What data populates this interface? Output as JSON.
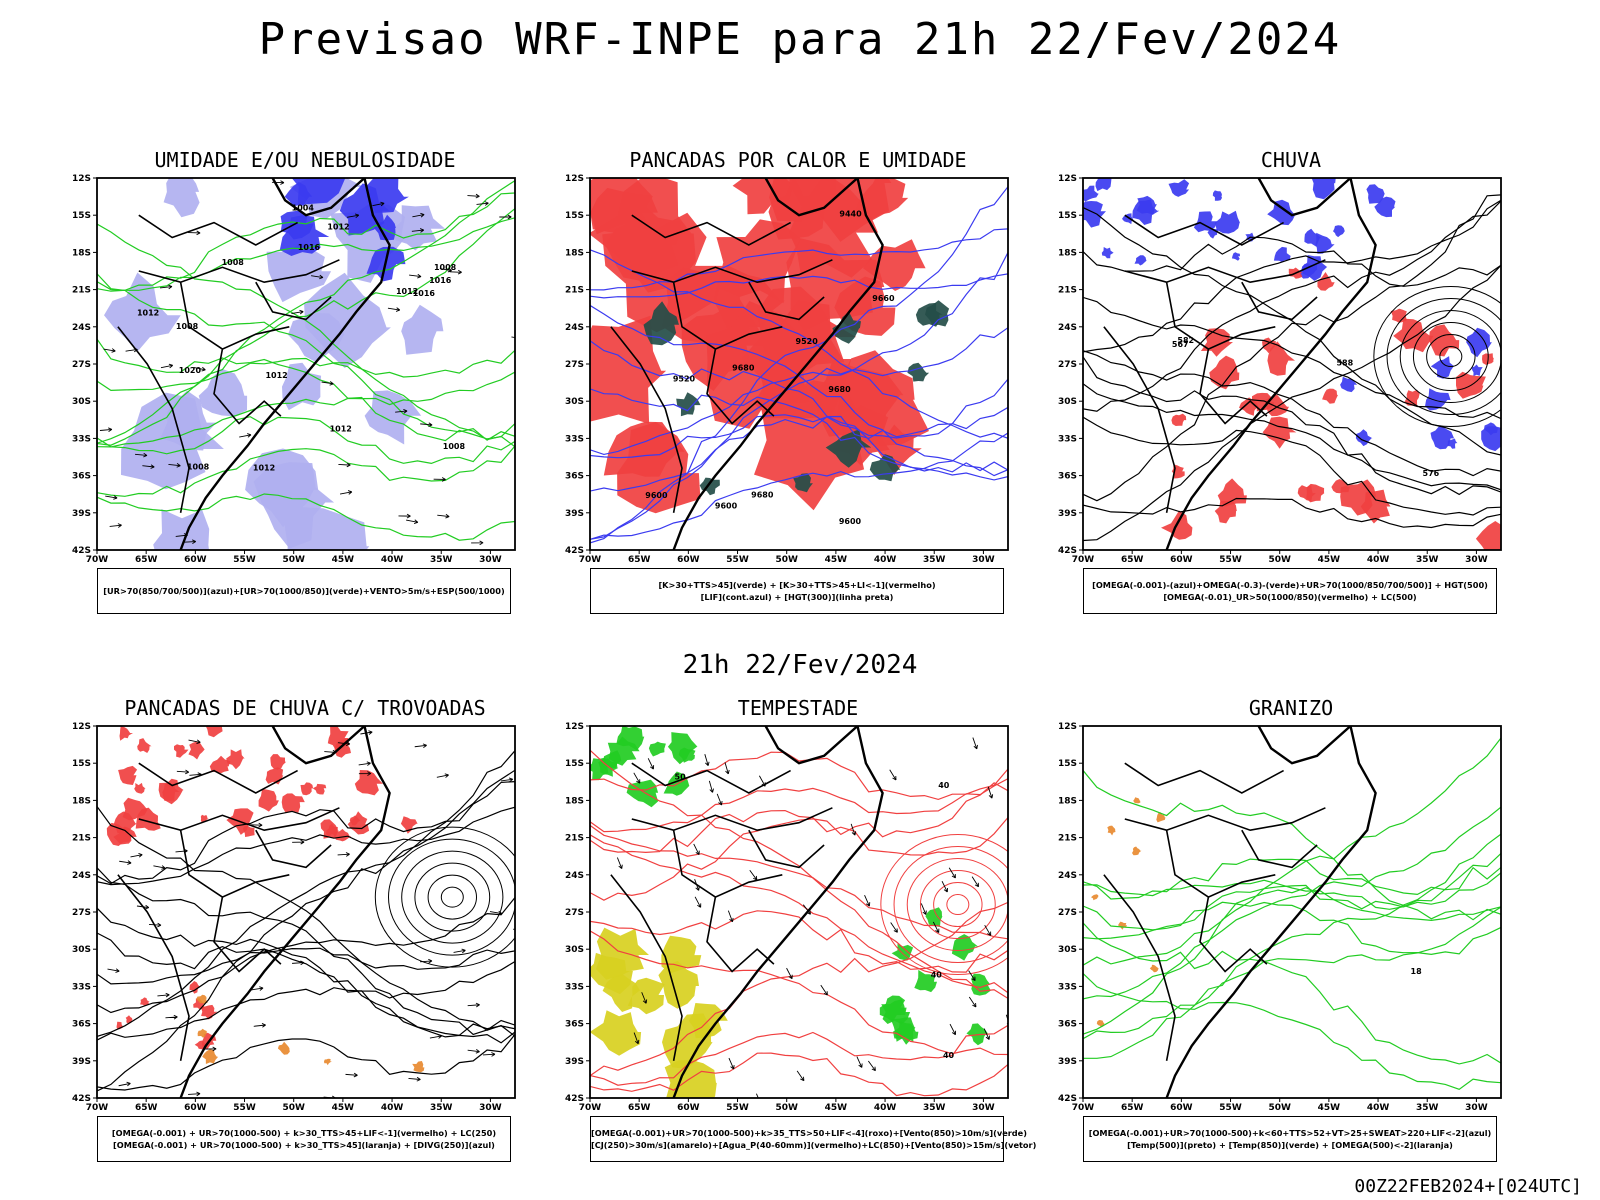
{
  "title": "Previsao WRF-INPE  para 21h 22/Fev/2024",
  "mid_date": "21h 22/Fev/2024",
  "footer": "00Z22FEB2024+[024UTC]",
  "axes": {
    "lat_ticks": [
      "12S",
      "15S",
      "18S",
      "21S",
      "24S",
      "27S",
      "30S",
      "33S",
      "36S",
      "39S",
      "42S"
    ],
    "lon_ticks": [
      "70W",
      "65W",
      "60W",
      "55W",
      "50W",
      "45W",
      "40W",
      "35W",
      "30W"
    ]
  },
  "panels": [
    {
      "title": "UMIDADE E/OU NEBULOSIDADE",
      "legend": [
        "[UR>70(850/700/500)](azul)+[UR>70(1000/850)](verde)+VENTO>5m/s+ESP(500/1000)"
      ],
      "labels": [
        "1008",
        "1012",
        "1008",
        "1008",
        "1012",
        "1012",
        "1016",
        "1016",
        "1004",
        "1008",
        "1012",
        "1012",
        "1008",
        "1016",
        "1012",
        "1020"
      ]
    },
    {
      "title": "PANCADAS POR CALOR E UMIDADE",
      "legend": [
        "[K>30+TTS>45](verde) + [K>30+TTS>45+LI<-1](vermelho)",
        "[LIF](cont.azul) + [HGT(300)](linha preta)"
      ],
      "labels": [
        "9680",
        "9680",
        "9600",
        "9660",
        "9680",
        "9600",
        "9600",
        "9520",
        "9520",
        "9440"
      ]
    },
    {
      "title": "CHUVA",
      "legend": [
        "[OMEGA(-0.001)-(azul)+OMEGA(-0.3)-(verde)+UR>70(1000/850/700/500)] + HGT(500)",
        "[OMEGA(-0.01)_UR>50(1000/850)(vermelho) + LC(500)"
      ],
      "labels": [
        "588",
        "582",
        "576",
        "567"
      ]
    },
    {
      "title": "PANCADAS DE CHUVA C/ TROVOADAS",
      "legend": [
        "[OMEGA(-0.001) + UR>70(1000-500) + k>30_TTS>45+LIF<-1](vermelho) + LC(250)",
        "[OMEGA(-0.001) + UR>70(1000-500) + k>30_TTS>45](laranja) + [DIVG(250)](azul)"
      ],
      "labels": []
    },
    {
      "title": "TEMPESTADE",
      "legend": [
        "[OMEGA(-0.001)+UR>70(1000-500)+k>35_TTS>50+LIF<-4](roxo)+[Vento(850)>10m/s](verde)",
        "[CJ(250)>30m/s](amarelo)+[Agua_P(40-60mm)](vermelho)+LC(850)+[Vento(850)>15m/s](vetor)"
      ],
      "labels": [
        "40",
        "50",
        "40",
        "40"
      ]
    },
    {
      "title": "GRANIZO",
      "legend": [
        "[OMEGA(-0.001)+UR>70(1000-500)+k<60+TTS>52+VT>25+SWEAT>220+LIF<-2](azul)",
        "[Temp(500)](preto) + [Temp(850)](verde) + [OMEGA(500)<-2](laranja)"
      ],
      "labels": [
        "18"
      ]
    }
  ],
  "colors": {
    "red": "#f04040",
    "blue": "#3b3bf0",
    "lightblue": "#b0b0f0",
    "green": "#22cc22",
    "teal": "#244d48",
    "yellow": "#d8d020",
    "orange": "#e88a30"
  }
}
